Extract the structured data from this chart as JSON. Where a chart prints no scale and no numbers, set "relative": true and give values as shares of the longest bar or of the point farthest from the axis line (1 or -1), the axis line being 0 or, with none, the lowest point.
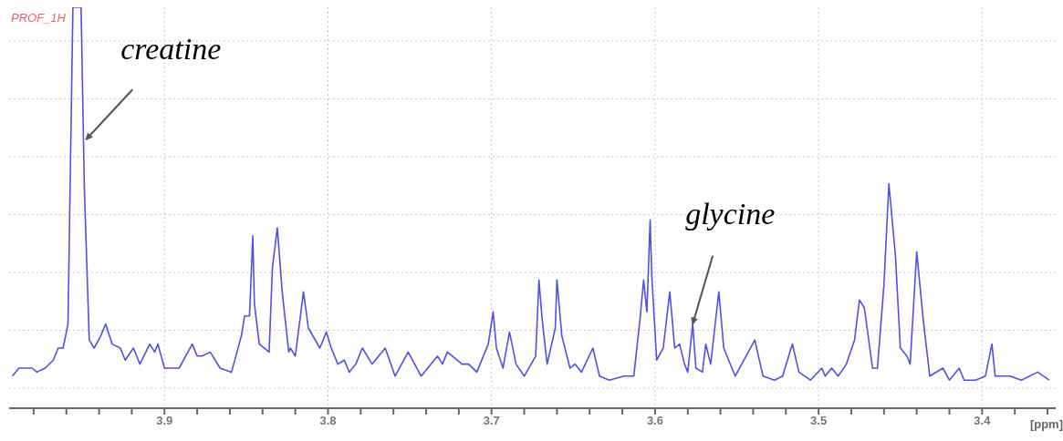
{
  "chart_data": {
    "type": "line",
    "title": "PROF_1H",
    "xlabel": "[ppm]",
    "relative": true,
    "grid": true,
    "marker": "none",
    "line_style": "solid",
    "xlim": [
      3.995,
      3.355
    ],
    "xticks": [
      {
        "value": 3.98,
        "label": null
      },
      {
        "value": 3.96,
        "label": null
      },
      {
        "value": 3.94,
        "label": null
      },
      {
        "value": 3.92,
        "label": null
      },
      3.9,
      {
        "value": 3.88,
        "label": null
      },
      {
        "value": 3.86,
        "label": null
      },
      {
        "value": 3.84,
        "label": null
      },
      {
        "value": 3.82,
        "label": null
      },
      3.8,
      {
        "value": 3.78,
        "label": null
      },
      {
        "value": 3.76,
        "label": null
      },
      {
        "value": 3.74,
        "label": null
      },
      {
        "value": 3.72,
        "label": null
      },
      3.7,
      {
        "value": 3.68,
        "label": null
      },
      {
        "value": 3.66,
        "label": null
      },
      {
        "value": 3.64,
        "label": null
      },
      {
        "value": 3.62,
        "label": null
      },
      3.6,
      {
        "value": 3.58,
        "label": null
      },
      {
        "value": 3.56,
        "label": null
      },
      {
        "value": 3.54,
        "label": null
      },
      {
        "value": 3.52,
        "label": null
      },
      3.5,
      {
        "value": 3.48,
        "label": null
      },
      {
        "value": 3.46,
        "label": null
      },
      {
        "value": 3.44,
        "label": null
      },
      {
        "value": 3.42,
        "label": null
      },
      3.4,
      {
        "value": 3.38,
        "label": null
      },
      {
        "value": 3.36,
        "label": null
      }
    ],
    "annotations": [
      {
        "text": "creatine",
        "x": 3.948,
        "y": 0.67
      },
      {
        "text": "glycine",
        "x": 3.577,
        "y": 0.21
      }
    ],
    "series": [
      {
        "color": "#5050e8",
        "x": [
          3.993,
          3.989,
          3.985,
          3.981,
          3.978,
          3.973,
          3.968,
          3.965,
          3.962,
          3.959,
          3.956,
          3.951,
          3.949,
          3.946,
          3.943,
          3.939,
          3.936,
          3.932,
          3.927,
          3.924,
          3.919,
          3.915,
          3.909,
          3.906,
          3.904,
          3.9,
          3.891,
          3.883,
          3.88,
          3.877,
          3.872,
          3.866,
          3.859,
          3.853,
          3.851,
          3.848,
          3.846,
          3.845,
          3.842,
          3.836,
          3.834,
          3.831,
          3.828,
          3.824,
          3.823,
          3.82,
          3.815,
          3.812,
          3.805,
          3.801,
          3.798,
          3.794,
          3.79,
          3.787,
          3.783,
          3.779,
          3.773,
          3.765,
          3.759,
          3.751,
          3.743,
          3.733,
          3.73,
          3.727,
          3.718,
          3.714,
          3.709,
          3.702,
          3.699,
          3.697,
          3.693,
          3.689,
          3.685,
          3.68,
          3.673,
          3.671,
          3.669,
          3.666,
          3.661,
          3.66,
          3.657,
          3.652,
          3.649,
          3.645,
          3.638,
          3.634,
          3.628,
          3.619,
          3.613,
          3.609,
          3.607,
          3.605,
          3.603,
          3.602,
          3.599,
          3.595,
          3.591,
          3.588,
          3.585,
          3.582,
          3.58,
          3.577,
          3.575,
          3.571,
          3.569,
          3.566,
          3.561,
          3.558,
          3.551,
          3.539,
          3.534,
          3.527,
          3.522,
          3.516,
          3.512,
          3.505,
          3.498,
          3.496,
          3.492,
          3.488,
          3.483,
          3.478,
          3.475,
          3.472,
          3.467,
          3.464,
          3.46,
          3.457,
          3.453,
          3.45,
          3.446,
          3.444,
          3.44,
          3.436,
          3.432,
          3.424,
          3.42,
          3.414,
          3.411,
          3.404,
          3.398,
          3.394,
          3.392,
          3.383,
          3.376,
          3.366,
          3.359
        ],
        "values": [
          0.08,
          0.1,
          0.1,
          0.1,
          0.09,
          0.1,
          0.12,
          0.15,
          0.15,
          0.21,
          1,
          1,
          0.55,
          0.17,
          0.15,
          0.18,
          0.21,
          0.16,
          0.15,
          0.12,
          0.15,
          0.11,
          0.16,
          0.14,
          0.16,
          0.1,
          0.1,
          0.16,
          0.13,
          0.13,
          0.14,
          0.1,
          0.09,
          0.18,
          0.23,
          0.23,
          0.43,
          0.26,
          0.16,
          0.14,
          0.35,
          0.45,
          0.29,
          0.14,
          0.15,
          0.13,
          0.29,
          0.2,
          0.15,
          0.19,
          0.15,
          0.11,
          0.12,
          0.09,
          0.11,
          0.15,
          0.11,
          0.15,
          0.08,
          0.14,
          0.08,
          0.13,
          0.11,
          0.14,
          0.11,
          0.11,
          0.09,
          0.16,
          0.24,
          0.15,
          0.1,
          0.19,
          0.11,
          0.08,
          0.13,
          0.32,
          0.22,
          0.11,
          0.2,
          0.32,
          0.18,
          0.1,
          0.11,
          0.09,
          0.15,
          0.08,
          0.07,
          0.08,
          0.08,
          0.23,
          0.32,
          0.24,
          0.47,
          0.33,
          0.12,
          0.15,
          0.29,
          0.15,
          0.16,
          0.11,
          0.09,
          0.21,
          0.1,
          0.09,
          0.16,
          0.11,
          0.29,
          0.15,
          0.08,
          0.17,
          0.08,
          0.07,
          0.08,
          0.16,
          0.09,
          0.07,
          0.1,
          0.08,
          0.1,
          0.08,
          0.11,
          0.17,
          0.27,
          0.25,
          0.1,
          0.1,
          0.31,
          0.56,
          0.38,
          0.15,
          0.13,
          0.11,
          0.39,
          0.22,
          0.08,
          0.1,
          0.07,
          0.1,
          0.07,
          0.07,
          0.08,
          0.16,
          0.08,
          0.08,
          0.07,
          0.09,
          0.07
        ]
      }
    ]
  }
}
